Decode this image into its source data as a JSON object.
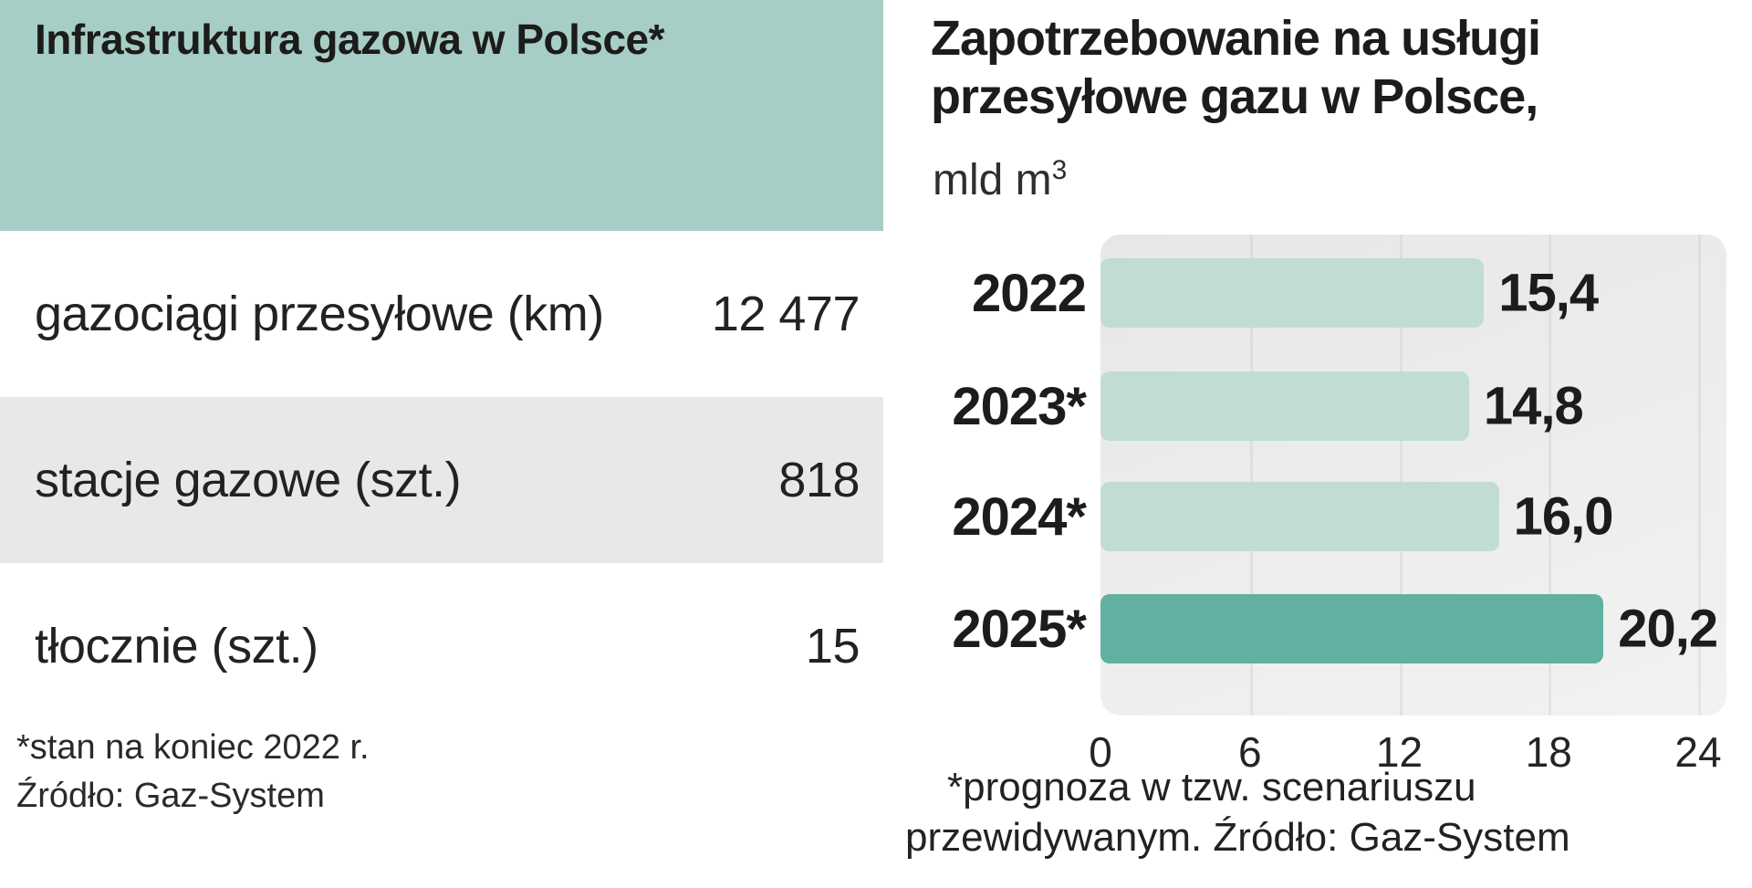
{
  "left_panel": {
    "title": "Infrastruktura gazowa w Polsce*",
    "rows": [
      {
        "label": "gazociągi przesyłowe (km)",
        "value": "12 477",
        "shaded": false
      },
      {
        "label": "stacje gazowe (szt.)",
        "value": "818",
        "shaded": true
      },
      {
        "label": "tłocznie (szt.)",
        "value": "15",
        "shaded": false
      }
    ],
    "footnote1": "*stan na koniec 2022 r.",
    "footnote2": "Źródło: Gaz-System"
  },
  "right_panel": {
    "title_line1": "Zapotrzebowanie na usługi",
    "title_line2": "przesyłowe gazu w Polsce,",
    "unit_base": "mld m",
    "unit_exponent": "3",
    "footnote_line1": "*prognoza w tzw. scenariuszu",
    "footnote_line2": "przewidywanym. Źródło: Gaz-System"
  },
  "chart_data": {
    "type": "bar",
    "orientation": "horizontal",
    "title": "Zapotrzebowanie na usługi przesyłowe gazu w Polsce",
    "unit": "mld m3",
    "categories": [
      "2022",
      "2023*",
      "2024*",
      "2025*"
    ],
    "values": [
      15.4,
      14.8,
      16.0,
      20.2
    ],
    "value_labels": [
      "15,4",
      "14,8",
      "16,0",
      "20,2"
    ],
    "x_ticks": [
      "0",
      "6",
      "12",
      "18",
      "24"
    ],
    "xlim": [
      0,
      24
    ],
    "highlight_index": 3,
    "grid": true,
    "legend": "none",
    "source": "Gaz-System"
  },
  "colors": {
    "header_teal": "#a7cec6",
    "row_shaded": "#e8e8e7",
    "bar_light": "#c1dcd5",
    "bar_highlight": "#62b0a1",
    "chart_bg": "#ececec",
    "text": "#1c1c1a"
  }
}
